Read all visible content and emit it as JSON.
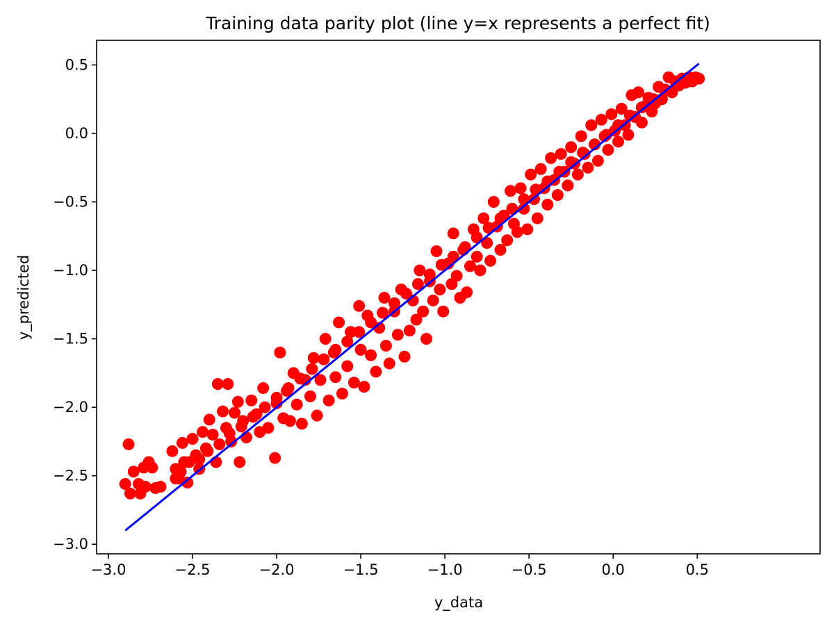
{
  "chart_data": {
    "type": "scatter",
    "title": "Training data parity plot (line y=x represents a perfect fit)",
    "xlabel": "y_data",
    "ylabel": "y_predicted",
    "xlim": [
      -3.07,
      1.23
    ],
    "ylim": [
      -3.07,
      0.68
    ],
    "xticks": [
      -3.0,
      -2.5,
      -2.0,
      -1.5,
      -1.0,
      -0.5,
      0.0,
      0.5
    ],
    "xtick_labels": [
      "−3.0",
      "−2.5",
      "−2.0",
      "−1.5",
      "−1.0",
      "−0.5",
      "0.0",
      "0.5"
    ],
    "yticks": [
      -3.0,
      -2.5,
      -2.0,
      -1.5,
      -1.0,
      -0.5,
      0.0,
      0.5
    ],
    "ytick_labels": [
      "−3.0",
      "−2.5",
      "−2.0",
      "−1.5",
      "−1.0",
      "−0.5",
      "0.0",
      "0.5"
    ],
    "grid": false,
    "legend": "none",
    "series": [
      {
        "kind": "scatter",
        "color": "#ff0000",
        "points": [
          [
            -2.9,
            -2.56
          ],
          [
            -2.88,
            -2.27
          ],
          [
            -2.87,
            -2.63
          ],
          [
            -2.85,
            -2.47
          ],
          [
            -2.82,
            -2.56
          ],
          [
            -2.81,
            -2.63
          ],
          [
            -2.79,
            -2.44
          ],
          [
            -2.78,
            -2.58
          ],
          [
            -2.76,
            -2.4
          ],
          [
            -2.74,
            -2.44
          ],
          [
            -2.72,
            -2.59
          ],
          [
            -2.69,
            -2.58
          ],
          [
            -2.62,
            -2.32
          ],
          [
            -2.6,
            -2.45
          ],
          [
            -2.58,
            -2.52
          ],
          [
            -2.56,
            -2.26
          ],
          [
            -2.55,
            -2.4
          ],
          [
            -2.53,
            -2.55
          ],
          [
            -2.5,
            -2.23
          ],
          [
            -2.48,
            -2.35
          ],
          [
            -2.46,
            -2.45
          ],
          [
            -2.44,
            -2.18
          ],
          [
            -2.42,
            -2.3
          ],
          [
            -2.4,
            -2.09
          ],
          [
            -2.38,
            -2.2
          ],
          [
            -2.36,
            -2.4
          ],
          [
            -2.35,
            -1.83
          ],
          [
            -2.32,
            -2.03
          ],
          [
            -2.3,
            -2.15
          ],
          [
            -2.29,
            -1.83
          ],
          [
            -2.27,
            -2.25
          ],
          [
            -2.25,
            -2.04
          ],
          [
            -2.23,
            -1.96
          ],
          [
            -2.22,
            -2.4
          ],
          [
            -2.2,
            -2.1
          ],
          [
            -2.18,
            -2.22
          ],
          [
            -2.15,
            -1.95
          ],
          [
            -2.12,
            -2.05
          ],
          [
            -2.1,
            -2.18
          ],
          [
            -2.08,
            -1.86
          ],
          [
            -2.05,
            -2.15
          ],
          [
            -2.01,
            -2.37
          ],
          [
            -2.0,
            -1.97
          ],
          [
            -1.98,
            -1.6
          ],
          [
            -1.96,
            -2.08
          ],
          [
            -1.94,
            -1.88
          ],
          [
            -1.92,
            -2.1
          ],
          [
            -1.9,
            -1.75
          ],
          [
            -1.88,
            -1.98
          ],
          [
            -1.85,
            -2.12
          ],
          [
            -1.83,
            -1.8
          ],
          [
            -1.8,
            -1.92
          ],
          [
            -1.78,
            -1.64
          ],
          [
            -1.76,
            -2.06
          ],
          [
            -1.74,
            -1.8
          ],
          [
            -1.71,
            -1.5
          ],
          [
            -1.69,
            -1.95
          ],
          [
            -1.66,
            -1.6
          ],
          [
            -1.65,
            -1.78
          ],
          [
            -1.63,
            -1.38
          ],
          [
            -1.61,
            -1.9
          ],
          [
            -1.58,
            -1.7
          ],
          [
            -1.56,
            -1.45
          ],
          [
            -1.54,
            -1.82
          ],
          [
            -1.51,
            -1.26
          ],
          [
            -1.5,
            -1.58
          ],
          [
            -1.48,
            -1.85
          ],
          [
            -1.46,
            -1.33
          ],
          [
            -1.44,
            -1.62
          ],
          [
            -1.41,
            -1.74
          ],
          [
            -1.39,
            -1.42
          ],
          [
            -1.36,
            -1.2
          ],
          [
            -1.35,
            -1.55
          ],
          [
            -1.33,
            -1.68
          ],
          [
            -1.3,
            -1.3
          ],
          [
            -1.28,
            -1.47
          ],
          [
            -1.26,
            -1.14
          ],
          [
            -1.24,
            -1.63
          ],
          [
            -1.21,
            -1.44
          ],
          [
            -1.19,
            -1.22
          ],
          [
            -1.17,
            -1.36
          ],
          [
            -1.15,
            -1.0
          ],
          [
            -1.13,
            -1.3
          ],
          [
            -1.11,
            -1.5
          ],
          [
            -1.09,
            -1.08
          ],
          [
            -1.07,
            -1.22
          ],
          [
            -1.05,
            -0.86
          ],
          [
            -1.03,
            -1.14
          ],
          [
            -1.01,
            -1.3
          ],
          [
            -0.98,
            -0.95
          ],
          [
            -0.96,
            -1.1
          ],
          [
            -0.95,
            -0.73
          ],
          [
            -0.93,
            -1.04
          ],
          [
            -0.91,
            -1.2
          ],
          [
            -0.89,
            -0.85
          ],
          [
            -0.87,
            -1.16
          ],
          [
            -0.85,
            -0.97
          ],
          [
            -0.83,
            -0.7
          ],
          [
            -0.81,
            -0.9
          ],
          [
            -0.79,
            -1.0
          ],
          [
            -0.77,
            -0.62
          ],
          [
            -0.75,
            -0.8
          ],
          [
            -0.73,
            -0.93
          ],
          [
            -0.71,
            -0.5
          ],
          [
            -0.69,
            -0.68
          ],
          [
            -0.67,
            -0.85
          ],
          [
            -0.65,
            -0.6
          ],
          [
            -0.63,
            -0.78
          ],
          [
            -0.61,
            -0.42
          ],
          [
            -0.59,
            -0.66
          ],
          [
            -0.57,
            -0.72
          ],
          [
            -0.55,
            -0.4
          ],
          [
            -0.53,
            -0.55
          ],
          [
            -0.51,
            -0.7
          ],
          [
            -0.49,
            -0.3
          ],
          [
            -0.47,
            -0.48
          ],
          [
            -0.45,
            -0.62
          ],
          [
            -0.43,
            -0.26
          ],
          [
            -0.41,
            -0.4
          ],
          [
            -0.39,
            -0.52
          ],
          [
            -0.37,
            -0.18
          ],
          [
            -0.35,
            -0.34
          ],
          [
            -0.33,
            -0.45
          ],
          [
            -0.31,
            -0.15
          ],
          [
            -0.29,
            -0.28
          ],
          [
            -0.27,
            -0.38
          ],
          [
            -0.25,
            -0.1
          ],
          [
            -0.23,
            -0.22
          ],
          [
            -0.21,
            -0.3
          ],
          [
            -0.19,
            -0.02
          ],
          [
            -0.17,
            -0.15
          ],
          [
            -0.15,
            -0.25
          ],
          [
            -0.13,
            0.06
          ],
          [
            -0.11,
            -0.08
          ],
          [
            -0.09,
            -0.2
          ],
          [
            -0.07,
            0.1
          ],
          [
            -0.05,
            -0.02
          ],
          [
            -0.03,
            -0.12
          ],
          [
            -0.01,
            0.14
          ],
          [
            0.01,
            0.02
          ],
          [
            0.03,
            -0.06
          ],
          [
            0.05,
            0.18
          ],
          [
            0.07,
            0.06
          ],
          [
            0.09,
            -0.01
          ],
          [
            0.11,
            0.28
          ],
          [
            0.13,
            0.12
          ],
          [
            0.15,
            0.3
          ],
          [
            0.17,
            0.08
          ],
          [
            0.19,
            0.2
          ],
          [
            0.21,
            0.26
          ],
          [
            0.23,
            0.16
          ],
          [
            0.25,
            0.22
          ],
          [
            0.27,
            0.34
          ],
          [
            0.29,
            0.25
          ],
          [
            0.31,
            0.32
          ],
          [
            0.33,
            0.41
          ],
          [
            0.35,
            0.3
          ],
          [
            0.37,
            0.38
          ],
          [
            0.39,
            0.35
          ],
          [
            0.41,
            0.4
          ],
          [
            0.43,
            0.37
          ],
          [
            0.45,
            0.41
          ],
          [
            0.47,
            0.38
          ],
          [
            0.49,
            0.41
          ],
          [
            0.51,
            0.4
          ],
          [
            -2.6,
            -2.52
          ],
          [
            -2.57,
            -2.47
          ],
          [
            -2.52,
            -2.4
          ],
          [
            -2.46,
            -2.38
          ],
          [
            -2.41,
            -2.32
          ],
          [
            -2.34,
            -2.27
          ],
          [
            -2.28,
            -2.19
          ],
          [
            -2.21,
            -2.14
          ],
          [
            -2.14,
            -2.07
          ],
          [
            -2.07,
            -2.0
          ],
          [
            -2.0,
            -1.93
          ],
          [
            -1.93,
            -1.86
          ],
          [
            -1.86,
            -1.79
          ],
          [
            -1.79,
            -1.72
          ],
          [
            -1.72,
            -1.65
          ],
          [
            -1.65,
            -1.58
          ],
          [
            -1.58,
            -1.52
          ],
          [
            -1.51,
            -1.45
          ],
          [
            -1.44,
            -1.38
          ],
          [
            -1.37,
            -1.31
          ],
          [
            -1.3,
            -1.24
          ],
          [
            -1.23,
            -1.17
          ],
          [
            -1.16,
            -1.1
          ],
          [
            -1.09,
            -1.03
          ],
          [
            -1.02,
            -0.96
          ],
          [
            -0.95,
            -0.9
          ],
          [
            -0.88,
            -0.83
          ],
          [
            -0.81,
            -0.76
          ],
          [
            -0.74,
            -0.69
          ],
          [
            -0.67,
            -0.62
          ],
          [
            -0.6,
            -0.55
          ],
          [
            -0.53,
            -0.48
          ],
          [
            -0.46,
            -0.41
          ],
          [
            -0.39,
            -0.35
          ],
          [
            -0.32,
            -0.28
          ],
          [
            -0.25,
            -0.21
          ],
          [
            -0.18,
            -0.14
          ],
          [
            -0.11,
            -0.08
          ],
          [
            -0.04,
            -0.01
          ],
          [
            0.03,
            0.06
          ],
          [
            0.1,
            0.13
          ],
          [
            0.17,
            0.19
          ],
          [
            0.24,
            0.25
          ],
          [
            0.31,
            0.31
          ],
          [
            0.38,
            0.36
          ]
        ]
      },
      {
        "kind": "line",
        "color": "#0000ff",
        "x": [
          -2.9,
          0.51
        ],
        "y": [
          -2.9,
          0.51
        ]
      }
    ]
  }
}
